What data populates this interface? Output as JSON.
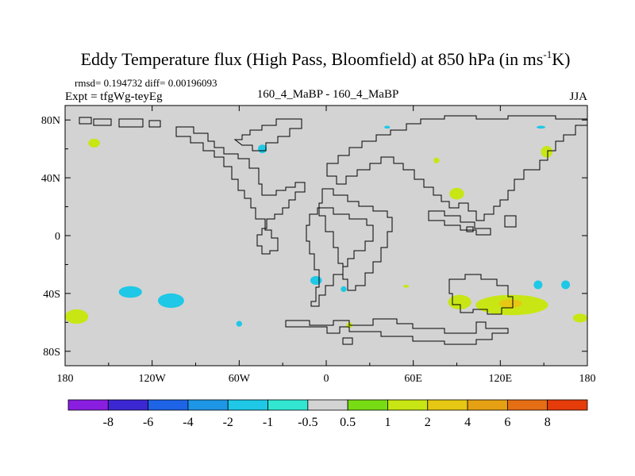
{
  "chart_data": {
    "type": "heatmap",
    "title_main": "Eddy Temperature flux (High Pass, Bloomfield) at 850 hPa (in ms",
    "title_sup": "-1",
    "title_end": "K)",
    "stats_line": "rmsd= 0.194732 diff= 0.00196093",
    "left_label": "Expt = tfgWg-teyEg",
    "center_label": "160_4_MaBP - 160_4_MaBP",
    "right_label": "JJA",
    "xaxis": {
      "range": [
        -180,
        180
      ],
      "ticks": [
        {
          "value": -180,
          "label": "180"
        },
        {
          "value": -120,
          "label": "120W"
        },
        {
          "value": -60,
          "label": "60W"
        },
        {
          "value": 0,
          "label": "0"
        },
        {
          "value": 60,
          "label": "60E"
        },
        {
          "value": 120,
          "label": "120E"
        },
        {
          "value": 180,
          "label": "180"
        }
      ]
    },
    "yaxis": {
      "range": [
        -90,
        90
      ],
      "ticks": [
        {
          "value": 80,
          "label": "80N"
        },
        {
          "value": 40,
          "label": "40N"
        },
        {
          "value": 0,
          "label": "0"
        },
        {
          "value": -40,
          "label": "40S"
        },
        {
          "value": -80,
          "label": "80S"
        }
      ]
    },
    "background_color": "#d3d3d3",
    "colorbar": {
      "colors": [
        "#8a1ee0",
        "#3c28d2",
        "#1e64e6",
        "#1e96e6",
        "#1ec8e6",
        "#32e6d2",
        "#d3d3d3",
        "#78dc14",
        "#c8e614",
        "#e6c814",
        "#e6a014",
        "#e66e14",
        "#e63c0a"
      ],
      "labels": [
        "-8",
        "-6",
        "-4",
        "-2",
        "-1",
        "-0.5",
        "0.5",
        "1",
        "2",
        "4",
        "6",
        "8"
      ]
    },
    "anomalies": [
      {
        "lon": -160,
        "lat": 64,
        "rlon": 4,
        "rlat": 3,
        "value": 1.2
      },
      {
        "lon": -135,
        "lat": -39,
        "rlon": 8,
        "rlat": 4,
        "value": -1.2
      },
      {
        "lon": -107,
        "lat": -45,
        "rlon": 9,
        "rlat": 5,
        "value": -1.2
      },
      {
        "lon": -172,
        "lat": -56,
        "rlon": 8,
        "rlat": 5,
        "value": 1.2
      },
      {
        "lon": -44,
        "lat": 60,
        "rlon": 3,
        "rlat": 3,
        "value": -1.2
      },
      {
        "lon": -7,
        "lat": -31,
        "rlon": 4,
        "rlat": 3,
        "value": -1.2
      },
      {
        "lon": -60,
        "lat": -61,
        "rlon": 2,
        "rlat": 2,
        "value": -1.2
      },
      {
        "lon": 12,
        "lat": -37,
        "rlon": 2,
        "rlat": 2,
        "value": -1.2
      },
      {
        "lon": 42,
        "lat": 75,
        "rlon": 2,
        "rlat": 1,
        "value": -1.2
      },
      {
        "lon": 90,
        "lat": 29,
        "rlon": 5,
        "rlat": 4,
        "value": 1.2
      },
      {
        "lon": 76,
        "lat": 52,
        "rlon": 2,
        "rlat": 2,
        "value": 1.2
      },
      {
        "lon": 148,
        "lat": 75,
        "rlon": 3,
        "rlat": 1,
        "value": -1.2
      },
      {
        "lon": 152,
        "lat": 58,
        "rlon": 4,
        "rlat": 4,
        "value": 1.2
      },
      {
        "lon": 146,
        "lat": -34,
        "rlon": 3,
        "rlat": 3,
        "value": -1.2
      },
      {
        "lon": 165,
        "lat": -34,
        "rlon": 3,
        "rlat": 3,
        "value": -1.2
      },
      {
        "lon": 92,
        "lat": -46,
        "rlon": 8,
        "rlat": 5,
        "value": 1.2
      },
      {
        "lon": 128,
        "lat": -48,
        "rlon": 25,
        "rlat": 7,
        "value": 1.2
      },
      {
        "lon": 127,
        "lat": -47,
        "rlon": 8,
        "rlat": 3,
        "value": 2.5
      },
      {
        "lon": 175,
        "lat": -57,
        "rlon": 5,
        "rlat": 3,
        "value": 1.2
      },
      {
        "lon": 55,
        "lat": -35,
        "rlon": 2,
        "rlat": 1,
        "value": 1.2
      },
      {
        "lon": 16,
        "lat": -62,
        "rlon": 2,
        "rlat": 2,
        "value": 1.2
      }
    ]
  }
}
